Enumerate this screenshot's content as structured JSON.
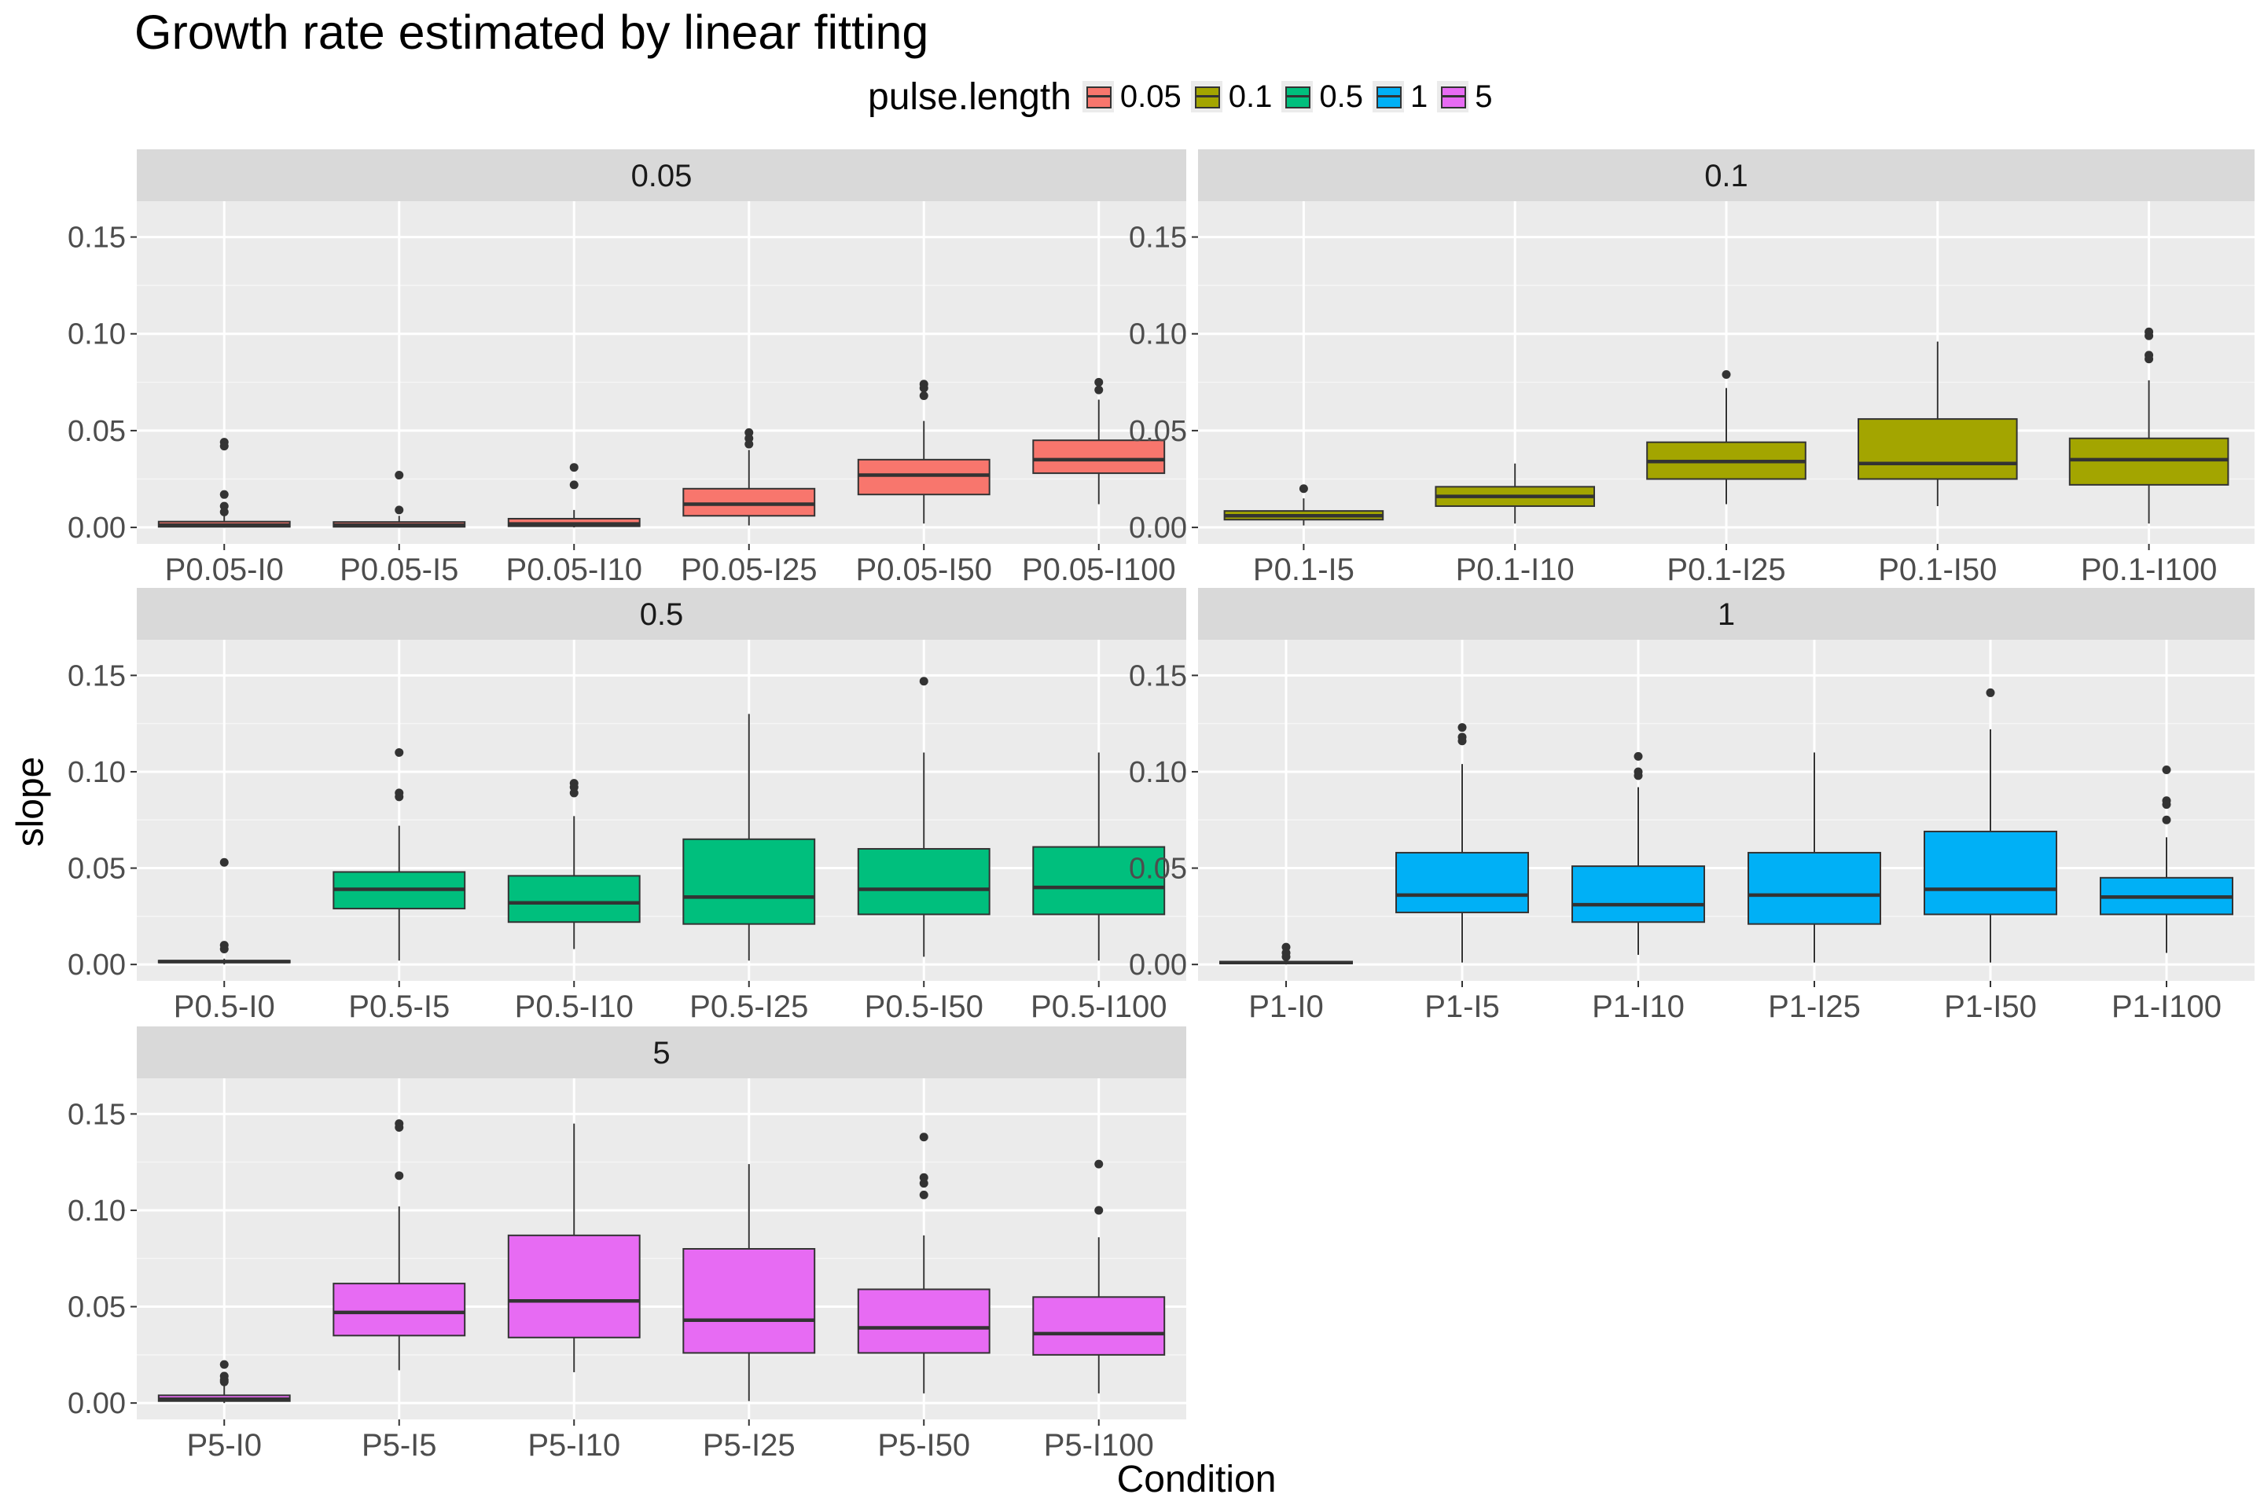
{
  "chart_data": {
    "type": "boxplot",
    "title": "Growth rate estimated by linear fitting",
    "xlabel": "Condition",
    "ylabel": "slope",
    "ylim": [
      -0.0085,
      0.1685
    ],
    "y_ticks": [
      "0.00",
      "0.05",
      "0.10",
      "0.15"
    ],
    "y_tick_values": [
      0,
      0.05,
      0.1,
      0.15
    ],
    "legend": {
      "title": "pulse.length",
      "position": "top",
      "items": [
        {
          "label": "0.05",
          "color": "#F8766D"
        },
        {
          "label": "0.1",
          "color": "#A3A500"
        },
        {
          "label": "0.5",
          "color": "#00BF7D"
        },
        {
          "label": "1",
          "color": "#00B0F6"
        },
        {
          "label": "5",
          "color": "#E76BF3"
        }
      ]
    },
    "panels": [
      {
        "strip": "0.05",
        "color": "#F8766D",
        "categories": [
          "P0.05-I0",
          "P0.05-I5",
          "P0.05-I10",
          "P0.05-I25",
          "P0.05-I50",
          "P0.05-I100"
        ],
        "boxes": [
          {
            "lower": 0.0,
            "q1": 0.0003,
            "median": 0.0012,
            "q3": 0.003,
            "upper": 0.006,
            "outliers": [
              0.044,
              0.042,
              0.017,
              0.011,
              0.008
            ]
          },
          {
            "lower": 0.0,
            "q1": 0.0003,
            "median": 0.0012,
            "q3": 0.0028,
            "upper": 0.006,
            "outliers": [
              0.027,
              0.009
            ]
          },
          {
            "lower": 0.0,
            "q1": 0.0006,
            "median": 0.0018,
            "q3": 0.0045,
            "upper": 0.009,
            "outliers": [
              0.031,
              0.022
            ]
          },
          {
            "lower": 0.001,
            "q1": 0.006,
            "median": 0.012,
            "q3": 0.02,
            "upper": 0.04,
            "outliers": [
              0.049,
              0.046,
              0.043
            ]
          },
          {
            "lower": 0.002,
            "q1": 0.017,
            "median": 0.027,
            "q3": 0.035,
            "upper": 0.055,
            "outliers": [
              0.074,
              0.072,
              0.068
            ]
          },
          {
            "lower": 0.012,
            "q1": 0.028,
            "median": 0.035,
            "q3": 0.045,
            "upper": 0.066,
            "outliers": [
              0.075,
              0.071
            ]
          }
        ]
      },
      {
        "strip": "0.1",
        "color": "#A3A500",
        "categories": [
          "P0.1-I5",
          "P0.1-I10",
          "P0.1-I25",
          "P0.1-I50",
          "P0.1-I100"
        ],
        "boxes": [
          {
            "lower": 0.001,
            "q1": 0.004,
            "median": 0.006,
            "q3": 0.0085,
            "upper": 0.015,
            "outliers": [
              0.02
            ]
          },
          {
            "lower": 0.002,
            "q1": 0.011,
            "median": 0.016,
            "q3": 0.021,
            "upper": 0.033,
            "outliers": []
          },
          {
            "lower": 0.012,
            "q1": 0.025,
            "median": 0.034,
            "q3": 0.044,
            "upper": 0.072,
            "outliers": [
              0.079
            ]
          },
          {
            "lower": 0.011,
            "q1": 0.025,
            "median": 0.033,
            "q3": 0.056,
            "upper": 0.096,
            "outliers": []
          },
          {
            "lower": 0.002,
            "q1": 0.022,
            "median": 0.035,
            "q3": 0.046,
            "upper": 0.076,
            "outliers": [
              0.101,
              0.099,
              0.089,
              0.087
            ]
          }
        ]
      },
      {
        "strip": "0.5",
        "color": "#00BF7D",
        "categories": [
          "P0.5-I0",
          "P0.5-I5",
          "P0.5-I10",
          "P0.5-I25",
          "P0.5-I50",
          "P0.5-I100"
        ],
        "boxes": [
          {
            "lower": 0.0,
            "q1": 0.001,
            "median": 0.0015,
            "q3": 0.002,
            "upper": 0.003,
            "outliers": [
              0.053,
              0.01,
              0.008
            ]
          },
          {
            "lower": 0.002,
            "q1": 0.029,
            "median": 0.039,
            "q3": 0.048,
            "upper": 0.072,
            "outliers": [
              0.11,
              0.089,
              0.087
            ]
          },
          {
            "lower": 0.008,
            "q1": 0.022,
            "median": 0.032,
            "q3": 0.046,
            "upper": 0.077,
            "outliers": [
              0.094,
              0.092,
              0.089
            ]
          },
          {
            "lower": 0.002,
            "q1": 0.021,
            "median": 0.035,
            "q3": 0.065,
            "upper": 0.13,
            "outliers": []
          },
          {
            "lower": 0.004,
            "q1": 0.026,
            "median": 0.039,
            "q3": 0.06,
            "upper": 0.11,
            "outliers": [
              0.147
            ]
          },
          {
            "lower": 0.002,
            "q1": 0.026,
            "median": 0.04,
            "q3": 0.061,
            "upper": 0.11,
            "outliers": []
          }
        ]
      },
      {
        "strip": "1",
        "color": "#00B0F6",
        "categories": [
          "P1-I0",
          "P1-I5",
          "P1-I10",
          "P1-I25",
          "P1-I50",
          "P1-I100"
        ],
        "boxes": [
          {
            "lower": 0.0,
            "q1": 0.0005,
            "median": 0.001,
            "q3": 0.0015,
            "upper": 0.0025,
            "outliers": [
              0.009,
              0.006,
              0.004
            ]
          },
          {
            "lower": 0.001,
            "q1": 0.027,
            "median": 0.036,
            "q3": 0.058,
            "upper": 0.104,
            "outliers": [
              0.123,
              0.118,
              0.116
            ]
          },
          {
            "lower": 0.005,
            "q1": 0.022,
            "median": 0.031,
            "q3": 0.051,
            "upper": 0.092,
            "outliers": [
              0.108,
              0.1,
              0.098
            ]
          },
          {
            "lower": 0.001,
            "q1": 0.021,
            "median": 0.036,
            "q3": 0.058,
            "upper": 0.11,
            "outliers": []
          },
          {
            "lower": 0.001,
            "q1": 0.026,
            "median": 0.039,
            "q3": 0.069,
            "upper": 0.122,
            "outliers": [
              0.141
            ]
          },
          {
            "lower": 0.006,
            "q1": 0.026,
            "median": 0.035,
            "q3": 0.045,
            "upper": 0.066,
            "outliers": [
              0.101,
              0.085,
              0.083,
              0.075
            ]
          }
        ]
      },
      {
        "strip": "5",
        "color": "#E76BF3",
        "categories": [
          "P5-I0",
          "P5-I5",
          "P5-I10",
          "P5-I25",
          "P5-I50",
          "P5-I100"
        ],
        "boxes": [
          {
            "lower": 0.0,
            "q1": 0.001,
            "median": 0.002,
            "q3": 0.004,
            "upper": 0.009,
            "outliers": [
              0.02,
              0.014,
              0.012,
              0.011
            ]
          },
          {
            "lower": 0.017,
            "q1": 0.035,
            "median": 0.047,
            "q3": 0.062,
            "upper": 0.102,
            "outliers": [
              0.145,
              0.143,
              0.118
            ]
          },
          {
            "lower": 0.016,
            "q1": 0.034,
            "median": 0.053,
            "q3": 0.087,
            "upper": 0.145,
            "outliers": []
          },
          {
            "lower": 0.001,
            "q1": 0.026,
            "median": 0.043,
            "q3": 0.08,
            "upper": 0.124,
            "outliers": []
          },
          {
            "lower": 0.005,
            "q1": 0.026,
            "median": 0.039,
            "q3": 0.059,
            "upper": 0.087,
            "outliers": [
              0.138,
              0.117,
              0.114,
              0.108
            ]
          },
          {
            "lower": 0.005,
            "q1": 0.025,
            "median": 0.036,
            "q3": 0.055,
            "upper": 0.086,
            "outliers": [
              0.124,
              0.1
            ]
          }
        ]
      }
    ]
  }
}
